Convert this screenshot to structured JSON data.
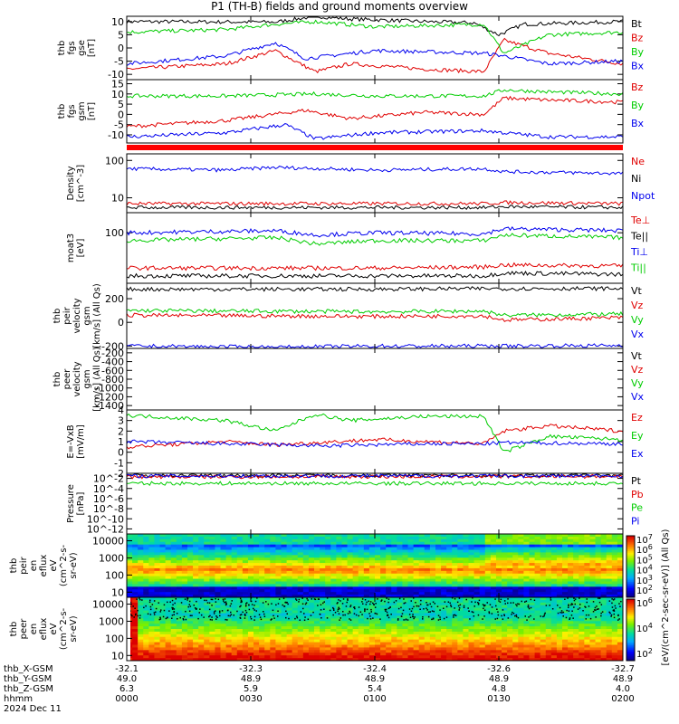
{
  "title": "P1 (TH-B) fields and ground moments overview",
  "footer": {
    "row_labels": [
      "thb_X-GSM",
      "thb_Y-GSM",
      "thb_Z-GSM",
      "hhmm",
      "2024 Dec 11"
    ],
    "columns": [
      {
        "x": "-32.1",
        "y": "49.0",
        "z": "6.3",
        "hhmm": "0000"
      },
      {
        "x": "-32.3",
        "y": "48.9",
        "z": "5.9",
        "hhmm": "0030"
      },
      {
        "x": "-32.4",
        "y": "48.9",
        "z": "5.4",
        "hhmm": "0100"
      },
      {
        "x": "-32.6",
        "y": "48.9",
        "z": "4.8",
        "hhmm": "0130"
      },
      {
        "x": "-32.7",
        "y": "48.9",
        "z": "4.0",
        "hhmm": "0200"
      }
    ]
  },
  "colorbar": {
    "label": "[eV/(cm^2-sec-sr-eV)] (All Qs)",
    "spec1_ticks": [
      "10^7",
      "10^6",
      "10^5",
      "10^4",
      "10^3",
      "10^2"
    ],
    "spec2_ticks": [
      "10^6",
      "10^4",
      "10^2"
    ]
  },
  "chart_data": [
    {
      "type": "line",
      "panel": "thb fgs gse",
      "ylabel": [
        "thb",
        "fgs",
        "gse",
        "[nT]"
      ],
      "yticks": [
        "10",
        "5",
        "0",
        "-5",
        "-10"
      ],
      "ylim": [
        -12,
        12
      ],
      "series": [
        {
          "name": "Bt",
          "color": "#000000",
          "shape": [
            [
              0,
              10
            ],
            [
              0.3,
              9.8
            ],
            [
              0.38,
              12
            ],
            [
              0.45,
              11
            ],
            [
              0.6,
              10
            ],
            [
              0.7,
              9.5
            ],
            [
              0.75,
              5
            ],
            [
              0.8,
              9
            ],
            [
              1,
              10
            ]
          ]
        },
        {
          "name": "Bz",
          "color": "#e00000",
          "shape": [
            [
              0,
              -8
            ],
            [
              0.2,
              -6
            ],
            [
              0.3,
              -1
            ],
            [
              0.38,
              -9
            ],
            [
              0.45,
              -6
            ],
            [
              0.6,
              -8
            ],
            [
              0.72,
              -9
            ],
            [
              0.76,
              3
            ],
            [
              0.85,
              -2
            ],
            [
              1,
              -6
            ]
          ]
        },
        {
          "name": "By",
          "color": "#00cc00",
          "shape": [
            [
              0,
              6
            ],
            [
              0.2,
              7
            ],
            [
              0.3,
              9
            ],
            [
              0.38,
              10
            ],
            [
              0.5,
              8
            ],
            [
              0.72,
              9
            ],
            [
              0.76,
              -2
            ],
            [
              0.85,
              5
            ],
            [
              1,
              6
            ]
          ]
        },
        {
          "name": "Bx",
          "color": "#0000ee",
          "shape": [
            [
              0,
              -6
            ],
            [
              0.2,
              -3
            ],
            [
              0.3,
              2
            ],
            [
              0.36,
              -4
            ],
            [
              0.5,
              -1
            ],
            [
              0.72,
              -2
            ],
            [
              0.76,
              -3
            ],
            [
              0.85,
              -6
            ],
            [
              1,
              -5
            ]
          ]
        }
      ]
    },
    {
      "type": "line",
      "panel": "thb fgs gsm",
      "ylabel": [
        "thb",
        "fgs",
        "gsm",
        "[nT]"
      ],
      "yticks": [
        "15",
        "10",
        "5",
        "0",
        "-5",
        "-10"
      ],
      "ylim": [
        -14,
        17
      ],
      "series": [
        {
          "name": "Bz",
          "color": "#e00000",
          "shape": [
            [
              0,
              -6
            ],
            [
              0.2,
              -3
            ],
            [
              0.36,
              2
            ],
            [
              0.45,
              -2
            ],
            [
              0.6,
              1
            ],
            [
              0.72,
              0
            ],
            [
              0.76,
              8
            ],
            [
              0.85,
              7
            ],
            [
              1,
              6
            ]
          ]
        },
        {
          "name": "By",
          "color": "#00cc00",
          "shape": [
            [
              0,
              9
            ],
            [
              0.2,
              9
            ],
            [
              0.38,
              10
            ],
            [
              0.5,
              9
            ],
            [
              0.72,
              9
            ],
            [
              0.76,
              12
            ],
            [
              0.85,
              11
            ],
            [
              1,
              10
            ]
          ]
        },
        {
          "name": "Bx",
          "color": "#0000ee",
          "shape": [
            [
              0,
              -11
            ],
            [
              0.2,
              -9
            ],
            [
              0.32,
              -5
            ],
            [
              0.38,
              -12
            ],
            [
              0.5,
              -9
            ],
            [
              0.72,
              -8
            ],
            [
              0.76,
              -9
            ],
            [
              0.85,
              -11
            ],
            [
              1,
              -11
            ]
          ]
        }
      ]
    },
    {
      "type": "line",
      "panel": "Density",
      "ylabel": [
        "Density",
        "[cm^-3]"
      ],
      "yticks": [
        "100",
        "10"
      ],
      "yscale": "log",
      "ylim": [
        4,
        150
      ],
      "series": [
        {
          "name": "Ne",
          "color": "#e00000",
          "shape": [
            [
              0,
              7
            ],
            [
              0.72,
              7
            ],
            [
              0.76,
              7.5
            ],
            [
              1,
              7
            ]
          ]
        },
        {
          "name": "Ni",
          "color": "#000000",
          "shape": [
            [
              0,
              5.5
            ],
            [
              0.72,
              5.5
            ],
            [
              0.76,
              5.8
            ],
            [
              1,
              5.5
            ]
          ]
        },
        {
          "name": "Npot",
          "color": "#0000ee",
          "shape": [
            [
              0,
              60
            ],
            [
              0.2,
              55
            ],
            [
              0.3,
              65
            ],
            [
              0.5,
              55
            ],
            [
              0.72,
              60
            ],
            [
              0.76,
              50
            ],
            [
              1,
              45
            ]
          ]
        }
      ]
    },
    {
      "type": "line",
      "panel": "moat3",
      "ylabel": [
        "moat3",
        "[eV]"
      ],
      "yticks": [
        "100"
      ],
      "yscale": "log",
      "ylim": [
        10,
        250
      ],
      "series": [
        {
          "name": "Te⊥",
          "color": "#e00000",
          "shape": [
            [
              0,
              20
            ],
            [
              0.5,
              20
            ],
            [
              0.72,
              21
            ],
            [
              0.76,
              23
            ],
            [
              1,
              22
            ]
          ]
        },
        {
          "name": "Te||",
          "color": "#000000",
          "shape": [
            [
              0,
              14
            ],
            [
              0.5,
              14
            ],
            [
              0.72,
              14
            ],
            [
              0.76,
              16
            ],
            [
              1,
              15
            ]
          ]
        },
        {
          "name": "Ti⊥",
          "color": "#0000ee",
          "shape": [
            [
              0,
              100
            ],
            [
              0.3,
              110
            ],
            [
              0.38,
              90
            ],
            [
              0.5,
              100
            ],
            [
              0.72,
              95
            ],
            [
              0.76,
              120
            ],
            [
              1,
              110
            ]
          ]
        },
        {
          "name": "Ti||",
          "color": "#00cc00",
          "shape": [
            [
              0,
              70
            ],
            [
              0.3,
              80
            ],
            [
              0.38,
              60
            ],
            [
              0.5,
              70
            ],
            [
              0.72,
              70
            ],
            [
              0.76,
              90
            ],
            [
              1,
              80
            ]
          ]
        }
      ]
    },
    {
      "type": "line",
      "panel": "thb peir velocity gsm",
      "ylabel": [
        "thb",
        "peir",
        "velocity",
        "gsm",
        "[km/s] (All Qs)"
      ],
      "yticks": [
        "200",
        "0",
        "-200"
      ],
      "ylim": [
        -220,
        330
      ],
      "series": [
        {
          "name": "Vt",
          "color": "#000000",
          "shape": [
            [
              0,
              280
            ],
            [
              0.5,
              280
            ],
            [
              0.72,
              285
            ],
            [
              1,
              285
            ]
          ]
        },
        {
          "name": "Vz",
          "color": "#e00000",
          "shape": [
            [
              0,
              60
            ],
            [
              0.5,
              50
            ],
            [
              0.72,
              55
            ],
            [
              0.76,
              20
            ],
            [
              1,
              40
            ]
          ]
        },
        {
          "name": "Vy",
          "color": "#00cc00",
          "shape": [
            [
              0,
              100
            ],
            [
              0.5,
              90
            ],
            [
              0.72,
              95
            ],
            [
              0.76,
              60
            ],
            [
              1,
              70
            ]
          ]
        },
        {
          "name": "Vx",
          "color": "#0000ee",
          "shape": [
            [
              0,
              -200
            ],
            [
              0.3,
              -210
            ],
            [
              0.5,
              -200
            ],
            [
              0.72,
              -200
            ],
            [
              1,
              -195
            ]
          ]
        }
      ]
    },
    {
      "type": "line",
      "panel": "thb peer velocity gsm",
      "ylabel": [
        "thb",
        "peer",
        "velocity",
        "gsm",
        "[km/s] (All Qs)"
      ],
      "yticks": [
        "-200",
        "-400",
        "-600",
        "-800",
        "-1000",
        "-1200",
        "-1400"
      ],
      "ylim": [
        -1500,
        -100
      ],
      "series": [
        {
          "name": "Vt",
          "color": "#000000",
          "shape": []
        },
        {
          "name": "Vz",
          "color": "#e00000",
          "shape": []
        },
        {
          "name": "Vy",
          "color": "#00cc00",
          "shape": []
        },
        {
          "name": "Vx",
          "color": "#0000ee",
          "shape": []
        }
      ]
    },
    {
      "type": "line",
      "panel": "E=-VxB",
      "ylabel": [
        "E=-VxB",
        "[mV/m]"
      ],
      "yticks": [
        "4",
        "3",
        "2",
        "1",
        "0",
        "-1",
        "-2"
      ],
      "ylim": [
        -2,
        4
      ],
      "series": [
        {
          "name": "Ez",
          "color": "#e00000",
          "shape": [
            [
              0,
              0.5
            ],
            [
              0.2,
              1
            ],
            [
              0.3,
              0.7
            ],
            [
              0.5,
              1.2
            ],
            [
              0.72,
              0.8
            ],
            [
              0.76,
              2
            ],
            [
              0.85,
              2.5
            ],
            [
              1,
              2
            ]
          ]
        },
        {
          "name": "Ey",
          "color": "#00cc00",
          "shape": [
            [
              0,
              3.5
            ],
            [
              0.2,
              3
            ],
            [
              0.3,
              2
            ],
            [
              0.38,
              3.6
            ],
            [
              0.45,
              3
            ],
            [
              0.6,
              3.4
            ],
            [
              0.72,
              3.4
            ],
            [
              0.76,
              0
            ],
            [
              0.85,
              1.5
            ],
            [
              1,
              1.2
            ]
          ]
        },
        {
          "name": "Ex",
          "color": "#0000ee",
          "shape": [
            [
              0,
              1
            ],
            [
              0.2,
              0.8
            ],
            [
              0.4,
              0.6
            ],
            [
              0.6,
              0.8
            ],
            [
              0.72,
              0.8
            ],
            [
              0.76,
              0.9
            ],
            [
              1,
              0.8
            ]
          ]
        }
      ]
    },
    {
      "type": "line",
      "panel": "Pressure",
      "ylabel": [
        "Pressure",
        "[nPa]"
      ],
      "yticks": [
        "10^-2",
        "10^-4",
        "10^-6",
        "10^-8",
        "10^-10",
        "10^-12"
      ],
      "yscale": "log",
      "ylim": [
        1e-13,
        0.1
      ],
      "series": [
        {
          "name": "Pt",
          "color": "#000000",
          "shape": [
            [
              0,
              0.04
            ],
            [
              1,
              0.04
            ]
          ]
        },
        {
          "name": "Pb",
          "color": "#e00000",
          "shape": [
            [
              0,
              0.02
            ],
            [
              1,
              0.025
            ]
          ]
        },
        {
          "name": "Pe",
          "color": "#00cc00",
          "shape": [
            [
              0,
              0.001
            ],
            [
              1,
              0.001
            ]
          ]
        },
        {
          "name": "Pi",
          "color": "#0000ee",
          "shape": [
            [
              0,
              0.03
            ],
            [
              1,
              0.03
            ]
          ]
        }
      ]
    },
    {
      "type": "heatmap",
      "panel": "thb peir en eflux",
      "ylabel": [
        "thb",
        "peir",
        "en",
        "eflux",
        "eV",
        "(cm^2-s-",
        "sr-eV)"
      ],
      "yticks": [
        "10000",
        "1000",
        "100",
        "10"
      ],
      "yscale": "log",
      "ylim": [
        5,
        25000
      ]
    },
    {
      "type": "heatmap",
      "panel": "thb peer en eflux",
      "ylabel": [
        "thb",
        "peer",
        "en",
        "eflux",
        "eV",
        "(cm^2-s-",
        "sr-eV)"
      ],
      "yticks": [
        "10000",
        "1000",
        "100",
        "10"
      ],
      "yscale": "log",
      "ylim": [
        5,
        25000
      ]
    }
  ]
}
